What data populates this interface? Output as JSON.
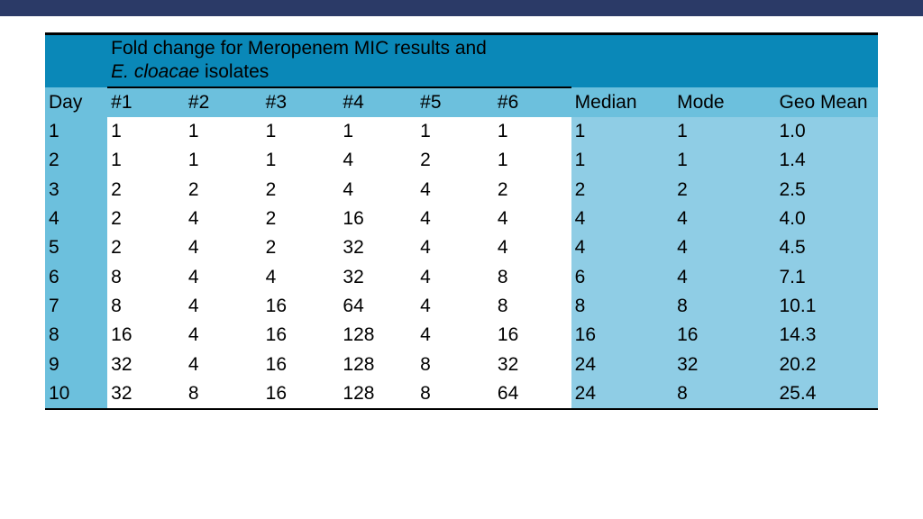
{
  "colors": {
    "topbar": "#2b3a67",
    "hdr_dark": "#0a88b8",
    "hdr_light": "#6cc0dd",
    "day_col": "#6cc0dd",
    "stats_bg": "#8fcde5",
    "white": "#ffffff",
    "black": "#000000"
  },
  "title": {
    "line1": "Fold change for Meropenem MIC results and",
    "line2_italic": "E. cloacae",
    "line2_rest": " isolates"
  },
  "columns": {
    "day": "Day",
    "isolates": [
      "#1",
      "#2",
      "#3",
      "#4",
      "#5",
      "#6"
    ],
    "stats": [
      "Median",
      "Mode",
      "Geo Mean"
    ]
  },
  "rows": [
    {
      "day": "1",
      "v": [
        "1",
        "1",
        "1",
        "1",
        "1",
        "1"
      ],
      "s": [
        "1",
        "1",
        "1.0"
      ]
    },
    {
      "day": "2",
      "v": [
        "1",
        "1",
        "1",
        "4",
        "2",
        "1"
      ],
      "s": [
        "1",
        "1",
        "1.4"
      ]
    },
    {
      "day": "3",
      "v": [
        "2",
        "2",
        "2",
        "4",
        "4",
        "2"
      ],
      "s": [
        "2",
        "2",
        "2.5"
      ]
    },
    {
      "day": "4",
      "v": [
        "2",
        "4",
        "2",
        "16",
        "4",
        "4"
      ],
      "s": [
        "4",
        "4",
        "4.0"
      ]
    },
    {
      "day": "5",
      "v": [
        "2",
        "4",
        "2",
        "32",
        "4",
        "4"
      ],
      "s": [
        "4",
        "4",
        "4.5"
      ]
    },
    {
      "day": "6",
      "v": [
        "8",
        "4",
        "4",
        "32",
        "4",
        "8"
      ],
      "s": [
        "6",
        "4",
        "7.1"
      ]
    },
    {
      "day": "7",
      "v": [
        "8",
        "4",
        "16",
        "64",
        "4",
        "8"
      ],
      "s": [
        "8",
        "8",
        "10.1"
      ]
    },
    {
      "day": "8",
      "v": [
        "16",
        "4",
        "16",
        "128",
        "4",
        "16"
      ],
      "s": [
        "16",
        "16",
        "14.3"
      ]
    },
    {
      "day": "9",
      "v": [
        "32",
        "4",
        "16",
        "128",
        "8",
        "32"
      ],
      "s": [
        "24",
        "32",
        "20.2"
      ]
    },
    {
      "day": "10",
      "v": [
        "32",
        "8",
        "16",
        "128",
        "8",
        "64"
      ],
      "s": [
        "24",
        "8",
        "25.4"
      ]
    }
  ]
}
